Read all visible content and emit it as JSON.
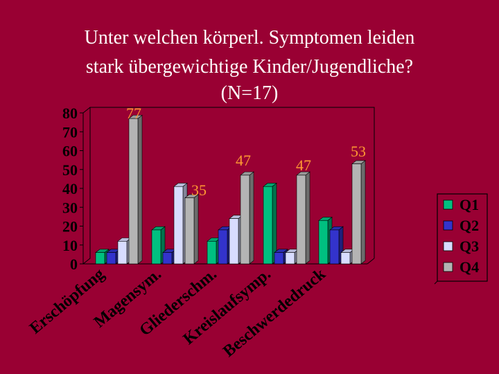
{
  "slide": {
    "title_lines": [
      "Unter welchen körperl. Symptomen leiden",
      "stark übergewichtige Kinder/Jugendliche?",
      "(N=17)"
    ]
  },
  "chart_data": {
    "type": "bar",
    "style": "3d-clustered-column",
    "title": "Unter welchen körperl. Symptomen leiden stark übergewichtige Kinder/Jugendliche? (N=17)",
    "categories": [
      "Erschöpfung",
      "Magensym.",
      "Gliederschm.",
      "Kreislaufsymp.",
      "Beschwerdedruck"
    ],
    "series": [
      {
        "name": "Q1",
        "color": "#00c080",
        "values": [
          6,
          18,
          12,
          41,
          23
        ]
      },
      {
        "name": "Q2",
        "color": "#3333cc",
        "values": [
          6,
          6,
          18,
          6,
          18
        ]
      },
      {
        "name": "Q3",
        "color": "#d8dcff",
        "values": [
          12,
          41,
          24,
          6,
          6
        ]
      },
      {
        "name": "Q4",
        "color": "#b4b4b4",
        "values": [
          77,
          35,
          47,
          47,
          53
        ]
      }
    ],
    "data_labels": [
      "77",
      "35",
      "47",
      "47",
      "53"
    ],
    "y_ticks": [
      "0",
      "10",
      "20",
      "30",
      "40",
      "50",
      "60",
      "70",
      "80"
    ],
    "ylim": [
      0,
      80
    ],
    "grid": false,
    "legend_position": "right",
    "colors": {
      "label": "#ff9933",
      "axis_text": "#000000",
      "background": "#990033"
    }
  }
}
